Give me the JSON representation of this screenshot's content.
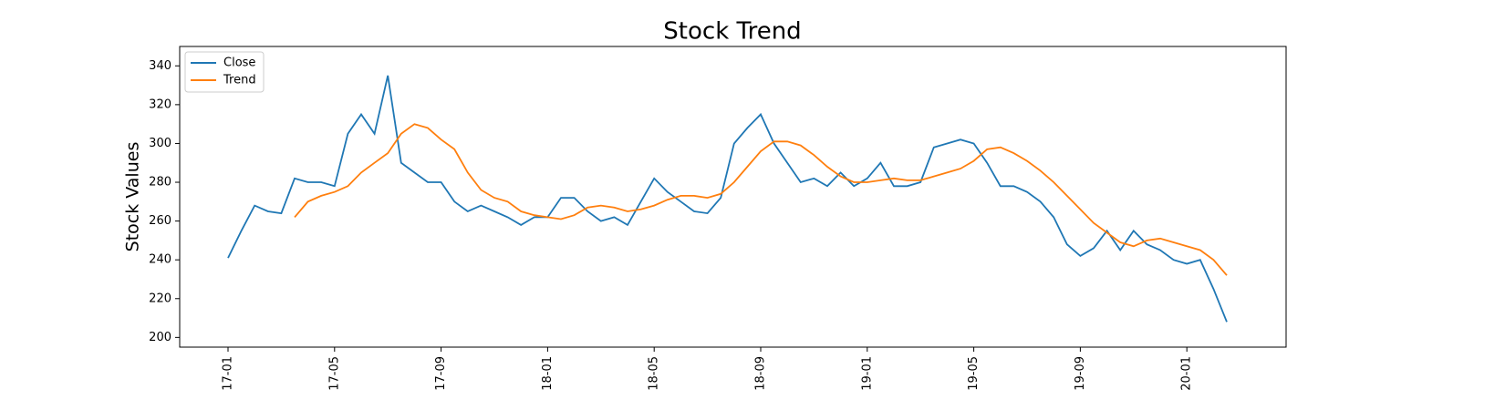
{
  "chart_data": {
    "type": "line",
    "title": "Stock Trend",
    "y_label": "Stock Values",
    "categories": [
      "17-01",
      null,
      null,
      null,
      null,
      null,
      null,
      null,
      "17-05",
      null,
      null,
      null,
      null,
      null,
      null,
      null,
      "17-09",
      null,
      null,
      null,
      null,
      null,
      null,
      null,
      "18-01",
      null,
      null,
      null,
      null,
      null,
      null,
      null,
      "18-05",
      null,
      null,
      null,
      null,
      null,
      null,
      null,
      "18-09",
      null,
      null,
      null,
      null,
      null,
      null,
      null,
      "19-01",
      null,
      null,
      null,
      null,
      null,
      null,
      null,
      "19-05",
      null,
      null,
      null,
      null,
      null,
      null,
      null,
      "19-09",
      null,
      null,
      null,
      null,
      null,
      null,
      null,
      "20-01",
      null,
      null,
      null
    ],
    "series": [
      {
        "name": "Close",
        "color": "#1f77b4",
        "values": [
          241,
          255,
          268,
          265,
          264,
          282,
          280,
          280,
          278,
          305,
          315,
          305,
          335,
          290,
          285,
          280,
          280,
          270,
          265,
          268,
          265,
          262,
          258,
          262,
          262,
          272,
          272,
          265,
          260,
          262,
          258,
          270,
          282,
          275,
          270,
          265,
          264,
          272,
          300,
          308,
          315,
          300,
          290,
          280,
          282,
          278,
          285,
          278,
          282,
          290,
          278,
          278,
          280,
          298,
          300,
          302,
          300,
          290,
          278,
          278,
          275,
          270,
          262,
          248,
          242,
          246,
          255,
          245,
          255,
          248,
          245,
          240,
          238,
          240,
          225,
          208
        ]
      },
      {
        "name": "Trend",
        "color": "#ff7f0e",
        "values": [
          null,
          null,
          null,
          null,
          null,
          262,
          270,
          273,
          275,
          278,
          285,
          290,
          295,
          305,
          310,
          308,
          302,
          297,
          285,
          276,
          272,
          270,
          265,
          263,
          262,
          261,
          263,
          267,
          268,
          267,
          265,
          266,
          268,
          271,
          273,
          273,
          272,
          274,
          280,
          288,
          296,
          301,
          301,
          299,
          294,
          288,
          283,
          280,
          280,
          281,
          282,
          281,
          281,
          283,
          285,
          287,
          291,
          297,
          298,
          295,
          291,
          286,
          280,
          273,
          266,
          259,
          254,
          249,
          247,
          250,
          251,
          249,
          247,
          245,
          240,
          232
        ]
      }
    ],
    "ylim": [
      195,
      350
    ],
    "yticks": [
      200,
      220,
      240,
      260,
      280,
      300,
      320,
      340
    ],
    "legend": "upper left"
  }
}
